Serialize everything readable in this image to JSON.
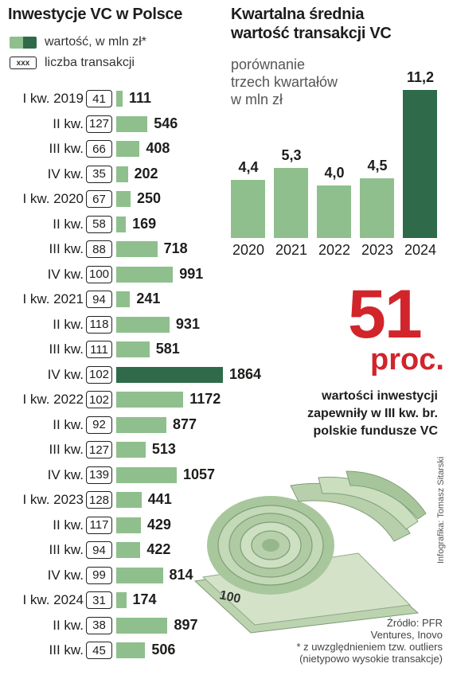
{
  "left_panel": {
    "title": "Inwestycje VC w Polsce",
    "legend_value": "wartość, w mln zł*",
    "legend_count_box": "xxx",
    "legend_count": "liczba transakcji"
  },
  "right_panel": {
    "title_line1": "Kwartalna średnia",
    "title_line2": "wartość transakcji VC",
    "subtitle_line1": "porównanie",
    "subtitle_line2": "trzech kwartałów",
    "subtitle_line3": "w mln zł"
  },
  "callout": {
    "number": "51",
    "unit": "proc.",
    "line1": "wartości inwestycji",
    "line2": "zapewniły w III kw. br.",
    "line3": "polskie fundusze VC"
  },
  "credit": "Infografika: Tomasz Sitarski",
  "source": {
    "line1": "Źródło: PFR",
    "line2": "Ventures, Inovo",
    "line3": "* z uwzględnieniem tzw. outliers",
    "line4": "(nietypowo wysokie transakcje)"
  },
  "colors": {
    "bar_light": "#8fbf8d",
    "bar_dark": "#2f6b4a",
    "accent_red": "#d2242b"
  },
  "chart_data": [
    {
      "type": "bar",
      "orientation": "horizontal",
      "title": "Inwestycje VC w Polsce",
      "categories": [
        "I kw. 2019",
        "II kw.",
        "III kw.",
        "IV kw.",
        "I kw. 2020",
        "II kw.",
        "III kw.",
        "IV kw.",
        "I kw. 2021",
        "II kw.",
        "III kw.",
        "IV kw.",
        "I kw. 2022",
        "II kw.",
        "III kw.",
        "IV kw.",
        "I kw. 2023",
        "II kw.",
        "III kw.",
        "IV kw.",
        "I kw. 2024",
        "II kw.",
        "III kw."
      ],
      "series": [
        {
          "name": "wartość, w mln zł*",
          "values": [
            111,
            546,
            408,
            202,
            250,
            169,
            718,
            991,
            241,
            931,
            581,
            1864,
            1172,
            877,
            513,
            1057,
            441,
            429,
            422,
            814,
            174,
            897,
            506
          ]
        },
        {
          "name": "liczba transakcji",
          "values": [
            41,
            127,
            66,
            35,
            67,
            58,
            88,
            100,
            94,
            118,
            111,
            102,
            102,
            92,
            127,
            139,
            128,
            117,
            94,
            99,
            31,
            38,
            45
          ]
        }
      ],
      "highlight_index": 11,
      "xlim": [
        0,
        1864
      ]
    },
    {
      "type": "bar",
      "title": "Kwartalna średnia wartość transakcji VC",
      "categories": [
        "2020",
        "2021",
        "2022",
        "2023",
        "2024"
      ],
      "values": [
        4.4,
        5.3,
        4.0,
        4.5,
        11.2
      ],
      "value_labels": [
        "4,4",
        "5,3",
        "4,0",
        "4,5",
        "11,2"
      ],
      "highlight_index": 4,
      "ylim": [
        0,
        11.2
      ]
    }
  ]
}
